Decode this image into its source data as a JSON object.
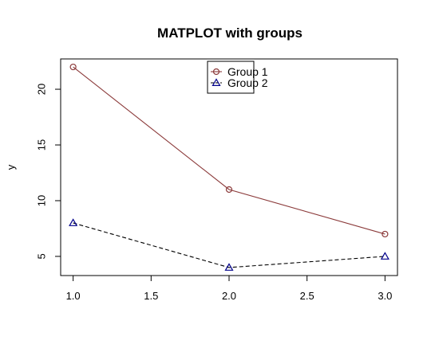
{
  "chart_data": {
    "type": "line",
    "title": "MATPLOT with groups",
    "xlabel": "",
    "ylabel": "y",
    "x": [
      1.0,
      2.0,
      3.0
    ],
    "xlim": [
      0.92,
      3.08
    ],
    "ylim": [
      3.28,
      22.72
    ],
    "xticks": [
      1.0,
      1.5,
      2.0,
      2.5,
      3.0
    ],
    "xtick_labels": [
      "1.0",
      "1.5",
      "2.0",
      "2.5",
      "3.0"
    ],
    "yticks": [
      5,
      10,
      15,
      20
    ],
    "ytick_labels": [
      "5",
      "10",
      "15",
      "20"
    ],
    "grid": false,
    "legend": "top-center",
    "series": [
      {
        "name": "Group 1",
        "values": [
          22,
          11,
          7
        ],
        "color": "#8B3A3A",
        "line_style": "solid",
        "marker": "circle",
        "marker_color": "#8B3A3A"
      },
      {
        "name": "Group 2",
        "values": [
          8,
          4,
          5
        ],
        "color": "#000000",
        "line_style": "dashed",
        "marker": "triangle",
        "marker_color": "#00008B"
      }
    ]
  }
}
